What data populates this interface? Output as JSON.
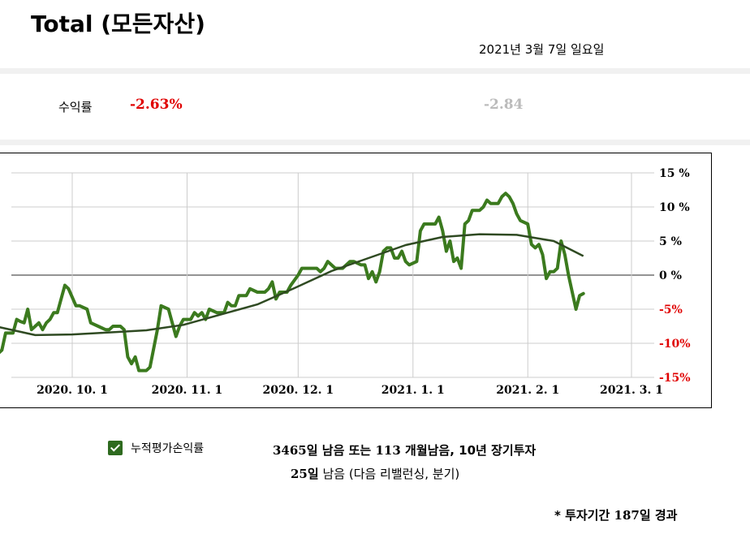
{
  "header": {
    "title": "Total (모든자산)",
    "date": "2021년 3월 7일 일요일"
  },
  "returns": {
    "label": "수익률",
    "value": "-2.63%",
    "prev_value": "-2.84",
    "value_color": "#e00000",
    "prev_color": "#bbbbbb"
  },
  "legend": {
    "checkbox_checked": true,
    "label": "누적평가손익률"
  },
  "info": {
    "remaining_days": "3465일",
    "remaining_text": "남음 또는",
    "months": "113",
    "months_text": "개월남음, 10년 장기투자",
    "rebalance_days": "25일",
    "rebalance_text": "남음 (다음 리밸런싱, 분기)"
  },
  "note": {
    "prefix": "* 투자기간",
    "days": "187일",
    "suffix": "경과"
  },
  "colors": {
    "series": "#3b7a1e",
    "trend": "#2f4a22",
    "negative_tick": "#e00000",
    "grid": "#cccccc"
  },
  "chart_data": {
    "type": "line",
    "title": "",
    "xlabel": "",
    "ylabel": "",
    "ylim": [
      -15,
      15
    ],
    "y_ticks": [
      15,
      10,
      5,
      0,
      -5,
      -10,
      -15
    ],
    "y_tick_labels": [
      "15 %",
      "10 %",
      "5 %",
      "0 %",
      "-5%",
      "-10%",
      "-15%"
    ],
    "x_range": [
      "2020-09-01",
      "2021-03-07"
    ],
    "x_ticks": [
      "2020-10-01",
      "2020-11-01",
      "2020-12-01",
      "2021-01-01",
      "2021-02-01",
      "2021-03-01"
    ],
    "x_tick_labels": [
      "2020. 10. 1",
      "2020. 11. 1",
      "2020. 12. 1",
      "2021. 1. 1",
      "2021. 2. 1",
      "2021. 3. 1"
    ],
    "grid": true,
    "series": [
      {
        "role": "cumulative",
        "points": [
          [
            "2020-09-01",
            -4.0
          ],
          [
            "2020-09-02",
            -5.0
          ],
          [
            "2020-09-03",
            -7.0
          ],
          [
            "2020-09-05",
            -10.0
          ],
          [
            "2020-09-07",
            -10.0
          ],
          [
            "2020-09-08",
            -10.5
          ],
          [
            "2020-09-09",
            -10.2
          ],
          [
            "2020-09-10",
            -8.5
          ],
          [
            "2020-09-11",
            -11.5
          ],
          [
            "2020-09-12",
            -11.0
          ],
          [
            "2020-09-13",
            -8.5
          ],
          [
            "2020-09-15",
            -8.5
          ],
          [
            "2020-09-16",
            -6.5
          ],
          [
            "2020-09-17",
            -6.8
          ],
          [
            "2020-09-18",
            -7.0
          ],
          [
            "2020-09-19",
            -5.0
          ],
          [
            "2020-09-20",
            -8.0
          ],
          [
            "2020-09-21",
            -7.5
          ],
          [
            "2020-09-22",
            -7.0
          ],
          [
            "2020-09-23",
            -8.0
          ],
          [
            "2020-09-24",
            -7.0
          ],
          [
            "2020-09-25",
            -6.5
          ],
          [
            "2020-09-26",
            -5.5
          ],
          [
            "2020-09-27",
            -5.5
          ],
          [
            "2020-09-28",
            -3.5
          ],
          [
            "2020-09-29",
            -1.5
          ],
          [
            "2020-09-30",
            -2.0
          ],
          [
            "2020-10-02",
            -4.5
          ],
          [
            "2020-10-03",
            -4.5
          ],
          [
            "2020-10-05",
            -5.0
          ],
          [
            "2020-10-06",
            -7.0
          ],
          [
            "2020-10-08",
            -7.5
          ],
          [
            "2020-10-10",
            -8.0
          ],
          [
            "2020-10-11",
            -8.0
          ],
          [
            "2020-10-12",
            -7.5
          ],
          [
            "2020-10-14",
            -7.5
          ],
          [
            "2020-10-15",
            -8.0
          ],
          [
            "2020-10-16",
            -12.0
          ],
          [
            "2020-10-17",
            -13.0
          ],
          [
            "2020-10-18",
            -12.0
          ],
          [
            "2020-10-19",
            -14.0
          ],
          [
            "2020-10-21",
            -14.0
          ],
          [
            "2020-10-22",
            -13.5
          ],
          [
            "2020-10-24",
            -8.0
          ],
          [
            "2020-10-25",
            -4.5
          ],
          [
            "2020-10-27",
            -5.0
          ],
          [
            "2020-10-28",
            -7.0
          ],
          [
            "2020-10-29",
            -9.0
          ],
          [
            "2020-10-30",
            -7.5
          ],
          [
            "2020-10-31",
            -6.5
          ],
          [
            "2020-11-02",
            -6.5
          ],
          [
            "2020-11-03",
            -5.5
          ],
          [
            "2020-11-04",
            -6.0
          ],
          [
            "2020-11-05",
            -5.5
          ],
          [
            "2020-11-06",
            -6.5
          ],
          [
            "2020-11-07",
            -5.0
          ],
          [
            "2020-11-09",
            -5.5
          ],
          [
            "2020-11-11",
            -5.5
          ],
          [
            "2020-11-12",
            -4.0
          ],
          [
            "2020-11-13",
            -4.5
          ],
          [
            "2020-11-14",
            -4.5
          ],
          [
            "2020-11-15",
            -3.0
          ],
          [
            "2020-11-17",
            -3.0
          ],
          [
            "2020-11-18",
            -2.0
          ],
          [
            "2020-11-20",
            -2.5
          ],
          [
            "2020-11-22",
            -2.5
          ],
          [
            "2020-11-23",
            -2.0
          ],
          [
            "2020-11-24",
            -1.0
          ],
          [
            "2020-11-25",
            -3.5
          ],
          [
            "2020-11-26",
            -2.5
          ],
          [
            "2020-11-28",
            -2.5
          ],
          [
            "2020-11-29",
            -1.5
          ],
          [
            "2020-12-01",
            0.0
          ],
          [
            "2020-12-02",
            1.0
          ],
          [
            "2020-12-04",
            1.0
          ],
          [
            "2020-12-06",
            1.0
          ],
          [
            "2020-12-07",
            0.5
          ],
          [
            "2020-12-08",
            1.0
          ],
          [
            "2020-12-09",
            2.0
          ],
          [
            "2020-12-11",
            1.0
          ],
          [
            "2020-12-13",
            1.0
          ],
          [
            "2020-12-14",
            1.5
          ],
          [
            "2020-12-15",
            2.0
          ],
          [
            "2020-12-16",
            2.0
          ],
          [
            "2020-12-18",
            1.5
          ],
          [
            "2020-12-19",
            1.5
          ],
          [
            "2020-12-20",
            -0.5
          ],
          [
            "2020-12-21",
            0.5
          ],
          [
            "2020-12-22",
            -1.0
          ],
          [
            "2020-12-23",
            0.5
          ],
          [
            "2020-12-24",
            3.5
          ],
          [
            "2020-12-25",
            4.0
          ],
          [
            "2020-12-26",
            4.0
          ],
          [
            "2020-12-27",
            2.5
          ],
          [
            "2020-12-28",
            2.5
          ],
          [
            "2020-12-29",
            3.5
          ],
          [
            "2020-12-30",
            2.0
          ],
          [
            "2020-12-31",
            1.5
          ],
          [
            "2021-01-02",
            2.0
          ],
          [
            "2021-01-03",
            6.5
          ],
          [
            "2021-01-04",
            7.5
          ],
          [
            "2021-01-06",
            7.5
          ],
          [
            "2021-01-07",
            7.5
          ],
          [
            "2021-01-08",
            8.5
          ],
          [
            "2021-01-09",
            6.5
          ],
          [
            "2021-01-10",
            3.5
          ],
          [
            "2021-01-11",
            5.0
          ],
          [
            "2021-01-12",
            2.0
          ],
          [
            "2021-01-13",
            2.5
          ],
          [
            "2021-01-14",
            1.0
          ],
          [
            "2021-01-15",
            7.5
          ],
          [
            "2021-01-16",
            8.0
          ],
          [
            "2021-01-17",
            9.5
          ],
          [
            "2021-01-19",
            9.5
          ],
          [
            "2021-01-20",
            10.0
          ],
          [
            "2021-01-21",
            11.0
          ],
          [
            "2021-01-22",
            10.5
          ],
          [
            "2021-01-24",
            10.5
          ],
          [
            "2021-01-25",
            11.5
          ],
          [
            "2021-01-26",
            12.0
          ],
          [
            "2021-01-27",
            11.5
          ],
          [
            "2021-01-28",
            10.5
          ],
          [
            "2021-01-29",
            9.0
          ],
          [
            "2021-01-30",
            8.0
          ],
          [
            "2021-02-01",
            7.5
          ],
          [
            "2021-02-02",
            4.5
          ],
          [
            "2021-02-03",
            4.0
          ],
          [
            "2021-02-04",
            4.5
          ],
          [
            "2021-02-05",
            3.0
          ],
          [
            "2021-02-06",
            -0.5
          ],
          [
            "2021-02-07",
            0.5
          ],
          [
            "2021-02-08",
            0.5
          ],
          [
            "2021-02-09",
            1.0
          ],
          [
            "2021-02-10",
            5.0
          ],
          [
            "2021-02-11",
            3.0
          ],
          [
            "2021-02-12",
            0.0
          ],
          [
            "2021-02-13",
            -2.5
          ],
          [
            "2021-02-14",
            -5.0
          ],
          [
            "2021-02-15",
            -3.0
          ],
          [
            "2021-02-16",
            -2.7
          ]
        ]
      },
      {
        "role": "trend",
        "points": [
          [
            "2020-09-01",
            -5.0
          ],
          [
            "2020-09-11",
            -7.6
          ],
          [
            "2020-09-21",
            -8.8
          ],
          [
            "2020-10-01",
            -8.7
          ],
          [
            "2020-10-11",
            -8.4
          ],
          [
            "2020-10-21",
            -8.1
          ],
          [
            "2020-10-31",
            -7.3
          ],
          [
            "2020-11-10",
            -5.8
          ],
          [
            "2020-11-20",
            -4.3
          ],
          [
            "2020-11-30",
            -1.9
          ],
          [
            "2020-12-10",
            0.6
          ],
          [
            "2020-12-20",
            2.5
          ],
          [
            "2020-12-30",
            4.4
          ],
          [
            "2021-01-09",
            5.6
          ],
          [
            "2021-01-19",
            6.0
          ],
          [
            "2021-01-29",
            5.9
          ],
          [
            "2021-02-08",
            5.0
          ],
          [
            "2021-02-16",
            2.8
          ]
        ]
      }
    ]
  }
}
